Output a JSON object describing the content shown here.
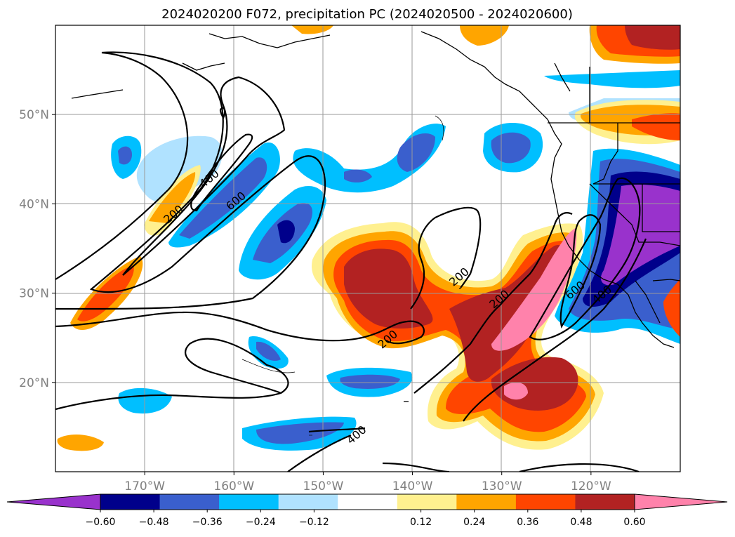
{
  "title": "2024020200 F072, precipitation PC (2024020500 - 2024020600)",
  "chart_data": {
    "type": "contour-map",
    "title": "2024020200 F072, precipitation PC (2024020500 - 2024020600)",
    "xlim": [
      -180,
      -110
    ],
    "ylim": [
      10,
      60
    ],
    "x_ticks": [
      {
        "value": -170,
        "label": "170°W"
      },
      {
        "value": -160,
        "label": "160°W"
      },
      {
        "value": -150,
        "label": "150°W"
      },
      {
        "value": -140,
        "label": "140°W"
      },
      {
        "value": -130,
        "label": "130°W"
      },
      {
        "value": -120,
        "label": "120°W"
      }
    ],
    "y_ticks": [
      {
        "value": 20,
        "label": "20°N"
      },
      {
        "value": 30,
        "label": "30°N"
      },
      {
        "value": 40,
        "label": "40°N"
      },
      {
        "value": 50,
        "label": "50°N"
      }
    ],
    "grid": true,
    "colorbar": {
      "orientation": "horizontal",
      "extend": "both",
      "levels": [
        -0.6,
        -0.48,
        -0.36,
        -0.24,
        -0.12,
        0.12,
        0.24,
        0.36,
        0.48,
        0.6
      ],
      "tick_labels": [
        "−0.60",
        "−0.48",
        "−0.36",
        "−0.24",
        "−0.12",
        "0.12",
        "0.24",
        "0.36",
        "0.48",
        "0.60"
      ],
      "colors": [
        "#9932cc",
        "#00008b",
        "#3a5fcd",
        "#00bfff",
        "#b0e2ff",
        "#ffffff",
        "#fff08f",
        "#ffa500",
        "#ff4500",
        "#b22222",
        "#ff82ab"
      ]
    },
    "contour_labels": [
      {
        "text": "200",
        "lon": -166.5,
        "lat": 38.5
      },
      {
        "text": "400",
        "lon": -162.5,
        "lat": 42.5
      },
      {
        "text": "600",
        "lon": -159.5,
        "lat": 40.0
      },
      {
        "text": "200",
        "lon": -134.5,
        "lat": 31.5
      },
      {
        "text": "200",
        "lon": -130.0,
        "lat": 29.0
      },
      {
        "text": "200",
        "lon": -142.5,
        "lat": 24.5
      },
      {
        "text": "600",
        "lon": -121.5,
        "lat": 30.0
      },
      {
        "text": "400",
        "lon": -118.5,
        "lat": 29.5
      },
      {
        "text": "400",
        "lon": -146.0,
        "lat": 13.8
      }
    ]
  }
}
